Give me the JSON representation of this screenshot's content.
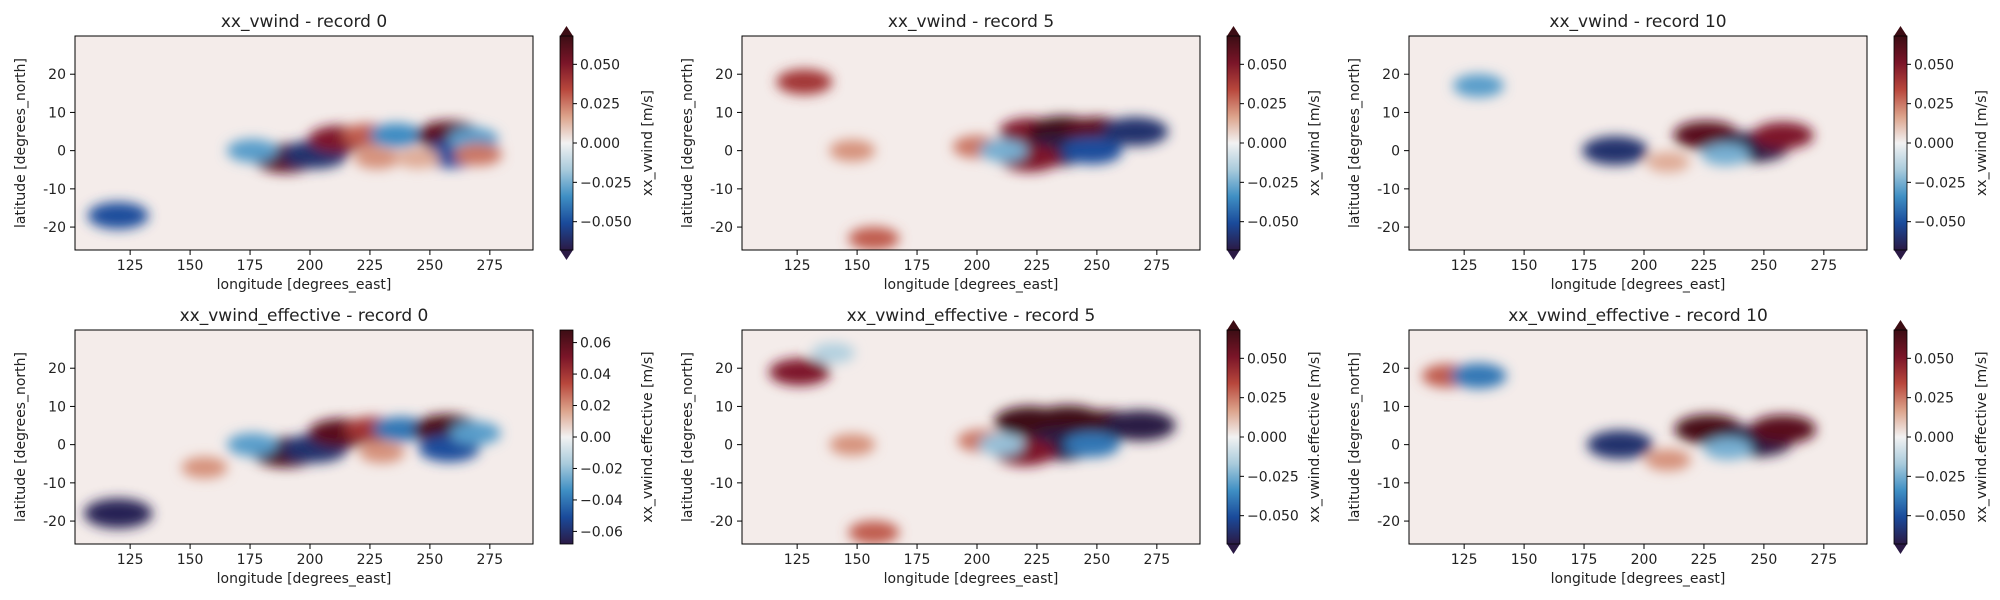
{
  "figure": {
    "cmap": [
      "#2b1a45",
      "#1a4a9a",
      "#3f8fc4",
      "#a9cbdc",
      "#f2f2f2",
      "#dca28a",
      "#b8473c",
      "#7a1528",
      "#3c0d14"
    ]
  },
  "chart_data": [
    {
      "type": "heatmap",
      "title": "xx_vwind - record 0",
      "xlabel": "longitude [degrees_east]",
      "ylabel": "latitude [degrees_north]",
      "colorbar_label": "xx_vwind [m/s]",
      "xlim": [
        102,
        293
      ],
      "ylim": [
        -26,
        30
      ],
      "xticks": [
        125,
        150,
        175,
        200,
        225,
        250,
        275
      ],
      "yticks": [
        -20,
        -10,
        0,
        10,
        20
      ],
      "clim": [
        -0.068,
        0.068
      ],
      "colorbar_ticks": [
        -0.05,
        -0.025,
        0.0,
        0.025,
        0.05
      ],
      "colorbar_ticklabels": [
        "−0.050",
        "−0.025",
        "0.000",
        "0.025",
        "0.050"
      ],
      "colorbar_extend": "both",
      "blobs": [
        {
          "lon": 190,
          "lat": -2,
          "value": 0.06
        },
        {
          "lon": 202,
          "lat": -1,
          "value": -0.06
        },
        {
          "lon": 212,
          "lat": 3,
          "value": 0.05
        },
        {
          "lon": 224,
          "lat": 4,
          "value": 0.03
        },
        {
          "lon": 236,
          "lat": 4,
          "value": -0.035
        },
        {
          "lon": 258,
          "lat": 4,
          "value": 0.06
        },
        {
          "lon": 259,
          "lat": -1,
          "value": -0.05
        },
        {
          "lon": 268,
          "lat": 3,
          "value": -0.03
        },
        {
          "lon": 270,
          "lat": -1,
          "value": 0.025
        },
        {
          "lon": 176,
          "lat": 0,
          "value": -0.03
        },
        {
          "lon": 120,
          "lat": -17,
          "value": -0.05
        },
        {
          "lon": 228,
          "lat": -2,
          "value": 0.02
        },
        {
          "lon": 245,
          "lat": -2,
          "value": 0.015
        }
      ]
    },
    {
      "type": "heatmap",
      "title": "xx_vwind - record 5",
      "xlabel": "longitude [degrees_east]",
      "ylabel": "latitude [degrees_north]",
      "colorbar_label": "xx_vwind [m/s]",
      "xlim": [
        102,
        293
      ],
      "ylim": [
        -26,
        30
      ],
      "xticks": [
        125,
        150,
        175,
        200,
        225,
        250,
        275
      ],
      "yticks": [
        -20,
        -10,
        0,
        10,
        20
      ],
      "clim": [
        -0.068,
        0.068
      ],
      "colorbar_ticks": [
        -0.05,
        -0.025,
        0.0,
        0.025,
        0.05
      ],
      "colorbar_ticklabels": [
        "−0.050",
        "−0.025",
        "0.000",
        "0.025",
        "0.050"
      ],
      "colorbar_extend": "both",
      "blobs": [
        {
          "lon": 222,
          "lat": 5,
          "value": 0.05
        },
        {
          "lon": 236,
          "lat": 5,
          "value": 0.07
        },
        {
          "lon": 250,
          "lat": 5,
          "value": 0.06
        },
        {
          "lon": 233,
          "lat": 0,
          "value": -0.07
        },
        {
          "lon": 248,
          "lat": 0,
          "value": -0.05
        },
        {
          "lon": 266,
          "lat": 5,
          "value": -0.06
        },
        {
          "lon": 222,
          "lat": -2,
          "value": 0.05
        },
        {
          "lon": 200,
          "lat": 1,
          "value": 0.025
        },
        {
          "lon": 211,
          "lat": 0,
          "value": -0.025
        },
        {
          "lon": 148,
          "lat": 0,
          "value": 0.02
        },
        {
          "lon": 128,
          "lat": 18,
          "value": 0.04
        },
        {
          "lon": 157,
          "lat": -23,
          "value": 0.03
        }
      ]
    },
    {
      "type": "heatmap",
      "title": "xx_vwind - record 10",
      "xlabel": "longitude [degrees_east]",
      "ylabel": "latitude [degrees_north]",
      "colorbar_label": "xx_vwind [m/s]",
      "xlim": [
        102,
        293
      ],
      "ylim": [
        -26,
        30
      ],
      "xticks": [
        125,
        150,
        175,
        200,
        225,
        250,
        275
      ],
      "yticks": [
        -20,
        -10,
        0,
        10,
        20
      ],
      "clim": [
        -0.068,
        0.068
      ],
      "colorbar_ticks": [
        -0.05,
        -0.025,
        0.0,
        0.025,
        0.05
      ],
      "colorbar_ticklabels": [
        "−0.050",
        "−0.025",
        "0.000",
        "0.025",
        "0.050"
      ],
      "colorbar_extend": "both",
      "blobs": [
        {
          "lon": 188,
          "lat": 0,
          "value": -0.06
        },
        {
          "lon": 226,
          "lat": 4,
          "value": 0.06
        },
        {
          "lon": 246,
          "lat": 1,
          "value": -0.07
        },
        {
          "lon": 258,
          "lat": 4,
          "value": 0.05
        },
        {
          "lon": 234,
          "lat": -1,
          "value": -0.025
        },
        {
          "lon": 210,
          "lat": -3,
          "value": 0.015
        },
        {
          "lon": 131,
          "lat": 17,
          "value": -0.03
        }
      ]
    },
    {
      "type": "heatmap",
      "title": "xx_vwind_effective - record 0",
      "xlabel": "longitude [degrees_east]",
      "ylabel": "latitude [degrees_north]",
      "colorbar_label": "xx_vwind.effective [m/s]",
      "xlim": [
        102,
        293
      ],
      "ylim": [
        -26,
        30
      ],
      "xticks": [
        125,
        150,
        175,
        200,
        225,
        250,
        275
      ],
      "yticks": [
        -20,
        -10,
        0,
        10,
        20
      ],
      "clim": [
        -0.068,
        0.068
      ],
      "colorbar_ticks": [
        -0.06,
        -0.04,
        -0.02,
        0.0,
        0.02,
        0.04,
        0.06
      ],
      "colorbar_ticklabels": [
        "−0.06",
        "−0.04",
        "−0.02",
        "0.00",
        "0.02",
        "0.04",
        "0.06"
      ],
      "colorbar_extend": "none",
      "blobs": [
        {
          "lon": 190,
          "lat": -2,
          "value": 0.065
        },
        {
          "lon": 202,
          "lat": -1,
          "value": -0.06
        },
        {
          "lon": 213,
          "lat": 3,
          "value": 0.06
        },
        {
          "lon": 226,
          "lat": 4,
          "value": 0.04
        },
        {
          "lon": 238,
          "lat": 4,
          "value": -0.04
        },
        {
          "lon": 257,
          "lat": 4,
          "value": 0.065
        },
        {
          "lon": 258,
          "lat": -1,
          "value": -0.05
        },
        {
          "lon": 269,
          "lat": 3,
          "value": -0.03
        },
        {
          "lon": 176,
          "lat": 0,
          "value": -0.03
        },
        {
          "lon": 120,
          "lat": -18,
          "value": -0.065
        },
        {
          "lon": 156,
          "lat": -6,
          "value": 0.02
        },
        {
          "lon": 230,
          "lat": -2,
          "value": 0.02
        }
      ]
    },
    {
      "type": "heatmap",
      "title": "xx_vwind_effective - record 5",
      "xlabel": "longitude [degrees_east]",
      "ylabel": "latitude [degrees_north]",
      "colorbar_label": "xx_vwind.effective [m/s]",
      "xlim": [
        102,
        293
      ],
      "ylim": [
        -26,
        30
      ],
      "xticks": [
        125,
        150,
        175,
        200,
        225,
        250,
        275
      ],
      "yticks": [
        -20,
        -10,
        0,
        10,
        20
      ],
      "clim": [
        -0.068,
        0.068
      ],
      "colorbar_ticks": [
        -0.05,
        -0.025,
        0.0,
        0.025,
        0.05
      ],
      "colorbar_ticklabels": [
        "−0.050",
        "−0.025",
        "0.000",
        "0.025",
        "0.050"
      ],
      "colorbar_extend": "both",
      "blobs": [
        {
          "lon": 222,
          "lat": 6,
          "value": 0.07
        },
        {
          "lon": 238,
          "lat": 6,
          "value": 0.08
        },
        {
          "lon": 254,
          "lat": 5,
          "value": 0.07
        },
        {
          "lon": 235,
          "lat": 0,
          "value": -0.075
        },
        {
          "lon": 248,
          "lat": 0,
          "value": -0.04
        },
        {
          "lon": 268,
          "lat": 5,
          "value": -0.07
        },
        {
          "lon": 220,
          "lat": -2,
          "value": 0.05
        },
        {
          "lon": 202,
          "lat": 1,
          "value": 0.025
        },
        {
          "lon": 210,
          "lat": 0,
          "value": -0.02
        },
        {
          "lon": 148,
          "lat": 0,
          "value": 0.02
        },
        {
          "lon": 126,
          "lat": 19,
          "value": 0.05
        },
        {
          "lon": 157,
          "lat": -23,
          "value": 0.03
        },
        {
          "lon": 140,
          "lat": 24,
          "value": -0.015
        }
      ]
    },
    {
      "type": "heatmap",
      "title": "xx_vwind_effective - record 10",
      "xlabel": "longitude [degrees_east]",
      "ylabel": "latitude [degrees_north]",
      "colorbar_label": "xx_vwind.effective [m/s]",
      "xlim": [
        102,
        293
      ],
      "ylim": [
        -26,
        30
      ],
      "xticks": [
        125,
        150,
        175,
        200,
        225,
        250,
        275
      ],
      "yticks": [
        -20,
        -10,
        0,
        10,
        20
      ],
      "clim": [
        -0.068,
        0.068
      ],
      "colorbar_ticks": [
        -0.05,
        -0.025,
        0.0,
        0.025,
        0.05
      ],
      "colorbar_ticklabels": [
        "−0.050",
        "−0.025",
        "0.000",
        "0.025",
        "0.050"
      ],
      "colorbar_extend": "both",
      "blobs": [
        {
          "lon": 190,
          "lat": 0,
          "value": -0.06
        },
        {
          "lon": 227,
          "lat": 4,
          "value": 0.065
        },
        {
          "lon": 247,
          "lat": 1,
          "value": -0.075
        },
        {
          "lon": 258,
          "lat": 4,
          "value": 0.06
        },
        {
          "lon": 235,
          "lat": -1,
          "value": -0.025
        },
        {
          "lon": 210,
          "lat": -4,
          "value": 0.02
        },
        {
          "lon": 118,
          "lat": 18,
          "value": 0.03
        },
        {
          "lon": 131,
          "lat": 18,
          "value": -0.04
        }
      ]
    }
  ]
}
